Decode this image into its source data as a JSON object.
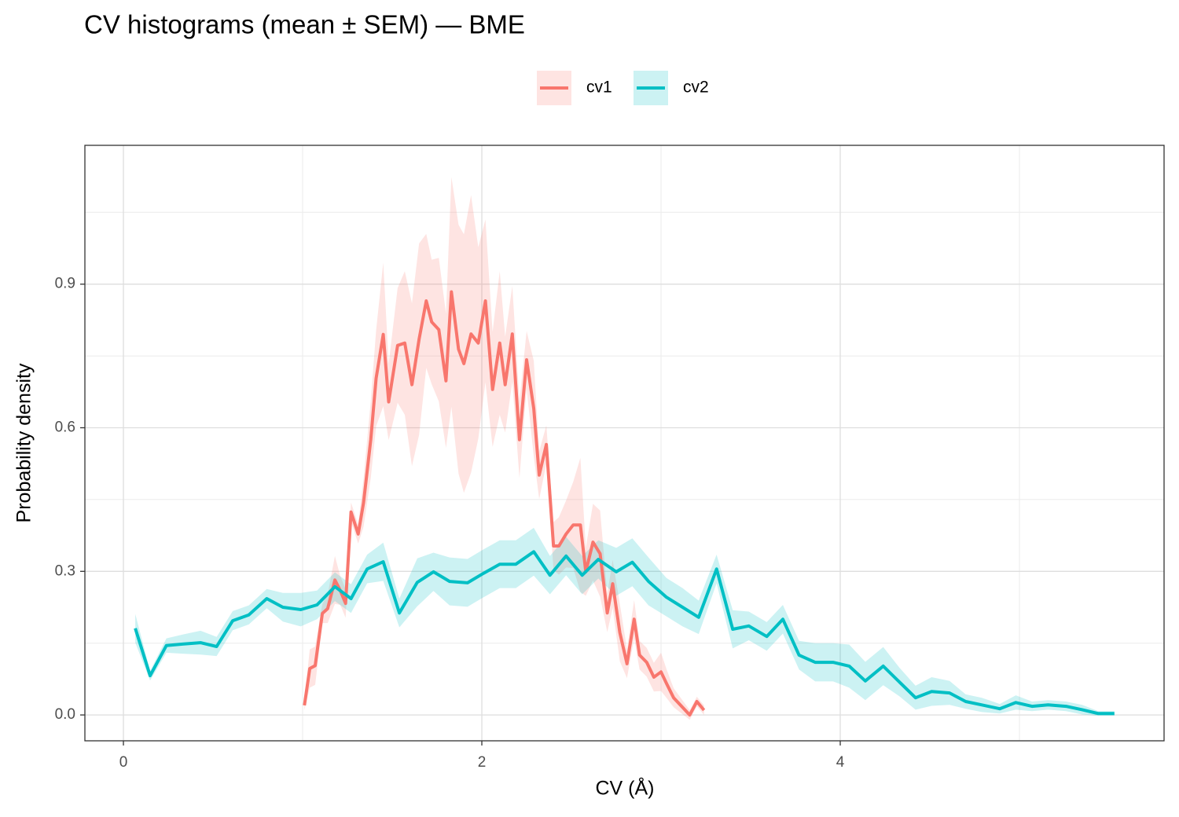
{
  "chart_data": {
    "type": "line",
    "title": "CV histograms (mean ± SEM) — BME",
    "x_label": "CV (Å)",
    "y_label": "Probability density",
    "xlim": [
      -0.215,
      5.807
    ],
    "ylim": [
      -0.054,
      1.19
    ],
    "xticks": [
      0,
      2,
      4
    ],
    "yticks": [
      {
        "value": 0,
        "label": "0.0"
      },
      {
        "value": 0.3,
        "label": "0.3"
      },
      {
        "value": 0.6,
        "label": "0.6"
      },
      {
        "value": 0.9,
        "label": "0.9"
      }
    ],
    "x_minor_grid": [
      1,
      3,
      5
    ],
    "y_minor_grid": [
      0.15,
      0.45,
      0.75,
      1.05
    ],
    "grid": true,
    "legend_position": "top",
    "series": [
      {
        "name": "cv1",
        "color": "#F8766D",
        "x": [
          1.01,
          1.04,
          1.07,
          1.11,
          1.14,
          1.18,
          1.21,
          1.24,
          1.27,
          1.31,
          1.34,
          1.38,
          1.41,
          1.45,
          1.48,
          1.53,
          1.57,
          1.61,
          1.65,
          1.69,
          1.72,
          1.76,
          1.8,
          1.83,
          1.87,
          1.9,
          1.94,
          1.98,
          2.02,
          2.06,
          2.1,
          2.13,
          2.17,
          2.21,
          2.25,
          2.29,
          2.32,
          2.36,
          2.4,
          2.43,
          2.47,
          2.51,
          2.55,
          2.58,
          2.62,
          2.66,
          2.7,
          2.73,
          2.77,
          2.81,
          2.85,
          2.88,
          2.92,
          2.96,
          3.0,
          3.03,
          3.07,
          3.16,
          3.2,
          3.24
        ],
        "values": [
          0.02,
          0.097,
          0.103,
          0.212,
          0.222,
          0.282,
          0.26,
          0.233,
          0.424,
          0.378,
          0.443,
          0.575,
          0.703,
          0.795,
          0.654,
          0.772,
          0.777,
          0.69,
          0.785,
          0.865,
          0.821,
          0.805,
          0.698,
          0.884,
          0.764,
          0.734,
          0.796,
          0.777,
          0.865,
          0.68,
          0.777,
          0.69,
          0.796,
          0.575,
          0.742,
          0.64,
          0.501,
          0.565,
          0.353,
          0.353,
          0.378,
          0.397,
          0.397,
          0.299,
          0.361,
          0.337,
          0.213,
          0.274,
          0.172,
          0.107,
          0.2,
          0.125,
          0.11,
          0.079,
          0.09,
          0.066,
          0.036,
          0.0,
          0.028,
          0.01
        ],
        "sem": [
          0.01,
          0.04,
          0.04,
          0.02,
          0.03,
          0.05,
          0.03,
          0.03,
          0.02,
          0.02,
          0.05,
          0.08,
          0.1,
          0.15,
          0.08,
          0.12,
          0.15,
          0.17,
          0.2,
          0.14,
          0.13,
          0.15,
          0.14,
          0.24,
          0.26,
          0.27,
          0.29,
          0.2,
          0.17,
          0.12,
          0.15,
          0.1,
          0.1,
          0.08,
          0.06,
          0.1,
          0.05,
          0.04,
          0.05,
          0.06,
          0.07,
          0.09,
          0.14,
          0.05,
          0.08,
          0.09,
          0.04,
          0.05,
          0.06,
          0.03,
          0.04,
          0.03,
          0.03,
          0.03,
          0.04,
          0.03,
          0.02,
          0.01,
          0.01,
          0.01
        ]
      },
      {
        "name": "cv2",
        "color": "#00BFC4",
        "x": [
          0.066,
          0.149,
          0.24,
          0.33,
          0.43,
          0.52,
          0.61,
          0.7,
          0.8,
          0.89,
          0.99,
          1.08,
          1.18,
          1.27,
          1.36,
          1.45,
          1.54,
          1.64,
          1.73,
          1.82,
          1.92,
          2.01,
          2.1,
          2.19,
          2.29,
          2.38,
          2.47,
          2.56,
          2.65,
          2.75,
          2.84,
          2.93,
          3.03,
          3.12,
          3.21,
          3.31,
          3.4,
          3.49,
          3.59,
          3.68,
          3.77,
          3.86,
          3.96,
          4.05,
          4.14,
          4.24,
          4.33,
          4.42,
          4.51,
          4.61,
          4.7,
          4.79,
          4.89,
          4.98,
          5.07,
          5.16,
          5.26,
          5.35,
          5.44,
          5.53
        ],
        "values": [
          0.181,
          0.082,
          0.145,
          0.148,
          0.151,
          0.143,
          0.197,
          0.209,
          0.243,
          0.225,
          0.22,
          0.23,
          0.268,
          0.243,
          0.305,
          0.32,
          0.213,
          0.277,
          0.299,
          0.279,
          0.276,
          0.296,
          0.315,
          0.315,
          0.341,
          0.292,
          0.332,
          0.292,
          0.325,
          0.299,
          0.319,
          0.279,
          0.246,
          0.225,
          0.204,
          0.305,
          0.179,
          0.186,
          0.164,
          0.2,
          0.125,
          0.11,
          0.11,
          0.102,
          0.071,
          0.102,
          0.069,
          0.036,
          0.049,
          0.046,
          0.028,
          0.021,
          0.013,
          0.026,
          0.018,
          0.021,
          0.018,
          0.011,
          0.003,
          0.003
        ],
        "sem": [
          0.03,
          0.01,
          0.015,
          0.02,
          0.025,
          0.02,
          0.02,
          0.02,
          0.02,
          0.03,
          0.035,
          0.03,
          0.03,
          0.03,
          0.03,
          0.04,
          0.03,
          0.05,
          0.04,
          0.05,
          0.05,
          0.05,
          0.05,
          0.05,
          0.05,
          0.04,
          0.04,
          0.04,
          0.04,
          0.05,
          0.05,
          0.05,
          0.04,
          0.04,
          0.035,
          0.03,
          0.04,
          0.03,
          0.03,
          0.03,
          0.03,
          0.04,
          0.04,
          0.045,
          0.04,
          0.04,
          0.03,
          0.025,
          0.03,
          0.025,
          0.015,
          0.015,
          0.01,
          0.015,
          0.01,
          0.01,
          0.01,
          0.01,
          0.005,
          0.005
        ]
      }
    ]
  }
}
